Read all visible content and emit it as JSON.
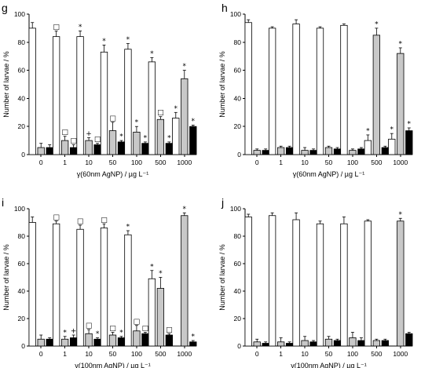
{
  "chart_data": [
    {
      "panel": "g",
      "type": "bar",
      "xlabel": "γ(60nm AgNP) / µg L⁻¹",
      "ylabel": "Number of larvae / %",
      "ylim": [
        0,
        100
      ],
      "yticks": [
        "0",
        "20",
        "40",
        "60",
        "80",
        "100"
      ],
      "categories": [
        "0",
        "1",
        "10",
        "50",
        "100",
        "500",
        "1000"
      ],
      "series": [
        {
          "color": "#ffffff",
          "values": [
            90,
            84,
            84,
            73,
            75,
            66,
            26
          ],
          "err": [
            4,
            4,
            4,
            5,
            4,
            3,
            4
          ],
          "marks": [
            "",
            "□",
            "*",
            "*",
            "*",
            "*",
            "*"
          ]
        },
        {
          "color": "#c8c8c8",
          "values": [
            5,
            10,
            10,
            17,
            16,
            25,
            54
          ],
          "err": [
            3,
            3,
            2,
            6,
            4,
            2,
            6
          ],
          "marks": [
            "",
            "□",
            "+",
            "□",
            "*",
            "□",
            "*"
          ]
        },
        {
          "color": "#000000",
          "values": [
            5,
            5,
            7,
            9,
            8,
            8,
            20
          ],
          "err": [
            2,
            2,
            1,
            1,
            1,
            1,
            1
          ],
          "marks": [
            "",
            "□",
            "□",
            "*",
            "*",
            "*",
            "*"
          ]
        }
      ]
    },
    {
      "panel": "h",
      "type": "bar",
      "xlabel": "γ(60nm AgNP) / µg L⁻¹",
      "ylabel": "Number of larvae / %",
      "ylim": [
        0,
        100
      ],
      "yticks": [
        "0",
        "20",
        "40",
        "60",
        "80",
        "100"
      ],
      "categories": [
        "0",
        "1",
        "10",
        "50",
        "100",
        "500",
        "1000"
      ],
      "series": [
        {
          "color": "#ffffff",
          "values": [
            94,
            90,
            93,
            90,
            92,
            10,
            11
          ],
          "err": [
            2,
            1,
            3,
            1,
            1,
            4,
            4
          ],
          "marks": [
            "",
            "",
            "",
            "",
            "",
            "*",
            "*"
          ]
        },
        {
          "color": "#c8c8c8",
          "values": [
            3,
            5,
            3,
            5,
            3,
            85,
            72
          ],
          "err": [
            1,
            1,
            2,
            1,
            1,
            5,
            4
          ],
          "marks": [
            "",
            "",
            "",
            "",
            "",
            "*",
            "*"
          ]
        },
        {
          "color": "#000000",
          "values": [
            3,
            5,
            3,
            4,
            4,
            5,
            17
          ],
          "err": [
            1,
            1,
            1,
            1,
            1,
            1,
            2
          ],
          "marks": [
            "",
            "",
            "",
            "",
            "",
            "",
            "*"
          ]
        }
      ]
    },
    {
      "panel": "i",
      "type": "bar",
      "xlabel": "γ(100nm AgNP) / µg L⁻¹",
      "ylabel": "Number of larvae / %",
      "ylim": [
        0,
        100
      ],
      "yticks": [
        "0",
        "20",
        "40",
        "60",
        "80",
        "100"
      ],
      "categories": [
        "0",
        "1",
        "10",
        "50",
        "100",
        "500",
        "1000"
      ],
      "series": [
        {
          "color": "#ffffff",
          "values": [
            90,
            89,
            85,
            86,
            81,
            49,
            0
          ],
          "err": [
            4,
            2,
            3,
            3,
            3,
            6,
            0
          ],
          "marks": [
            "",
            "□",
            "□",
            "□",
            "*",
            "*",
            ""
          ]
        },
        {
          "color": "#c8c8c8",
          "values": [
            5,
            5,
            9,
            8,
            11,
            42,
            95
          ],
          "err": [
            3,
            2,
            3,
            2,
            4,
            8,
            2
          ],
          "marks": [
            "",
            "*",
            "□",
            "□",
            "□",
            "*",
            "*"
          ]
        },
        {
          "color": "#000000",
          "values": [
            5,
            6,
            5,
            6,
            9,
            8,
            3
          ],
          "err": [
            1,
            2,
            1,
            1,
            1,
            1,
            1
          ],
          "marks": [
            "",
            "+",
            "*",
            "*",
            "□",
            "□",
            "*"
          ]
        }
      ]
    },
    {
      "panel": "j",
      "type": "bar",
      "xlabel": "γ(100nm AgNP) / µg L⁻¹",
      "ylabel": "Number of larvae / %",
      "ylim": [
        0,
        100
      ],
      "yticks": [
        "0",
        "20",
        "40",
        "60",
        "80",
        "100"
      ],
      "categories": [
        "0",
        "1",
        "10",
        "50",
        "100",
        "500",
        "1000"
      ],
      "series": [
        {
          "color": "#ffffff",
          "values": [
            94,
            95,
            92,
            89,
            89,
            91,
            0
          ],
          "err": [
            2,
            2,
            5,
            2,
            5,
            1,
            0
          ],
          "marks": [
            "",
            "",
            "",
            "",
            "",
            "",
            ""
          ]
        },
        {
          "color": "#c8c8c8",
          "values": [
            3,
            3,
            4,
            5,
            6,
            4,
            91
          ],
          "err": [
            2,
            3,
            3,
            2,
            4,
            1,
            2
          ],
          "marks": [
            "",
            "",
            "",
            "",
            "",
            "",
            "*"
          ]
        },
        {
          "color": "#000000",
          "values": [
            2,
            2,
            3,
            4,
            4,
            4,
            9
          ],
          "err": [
            1,
            1,
            1,
            1,
            2,
            1,
            1
          ],
          "marks": [
            "",
            "",
            "",
            "",
            "",
            "",
            ""
          ]
        }
      ]
    }
  ]
}
